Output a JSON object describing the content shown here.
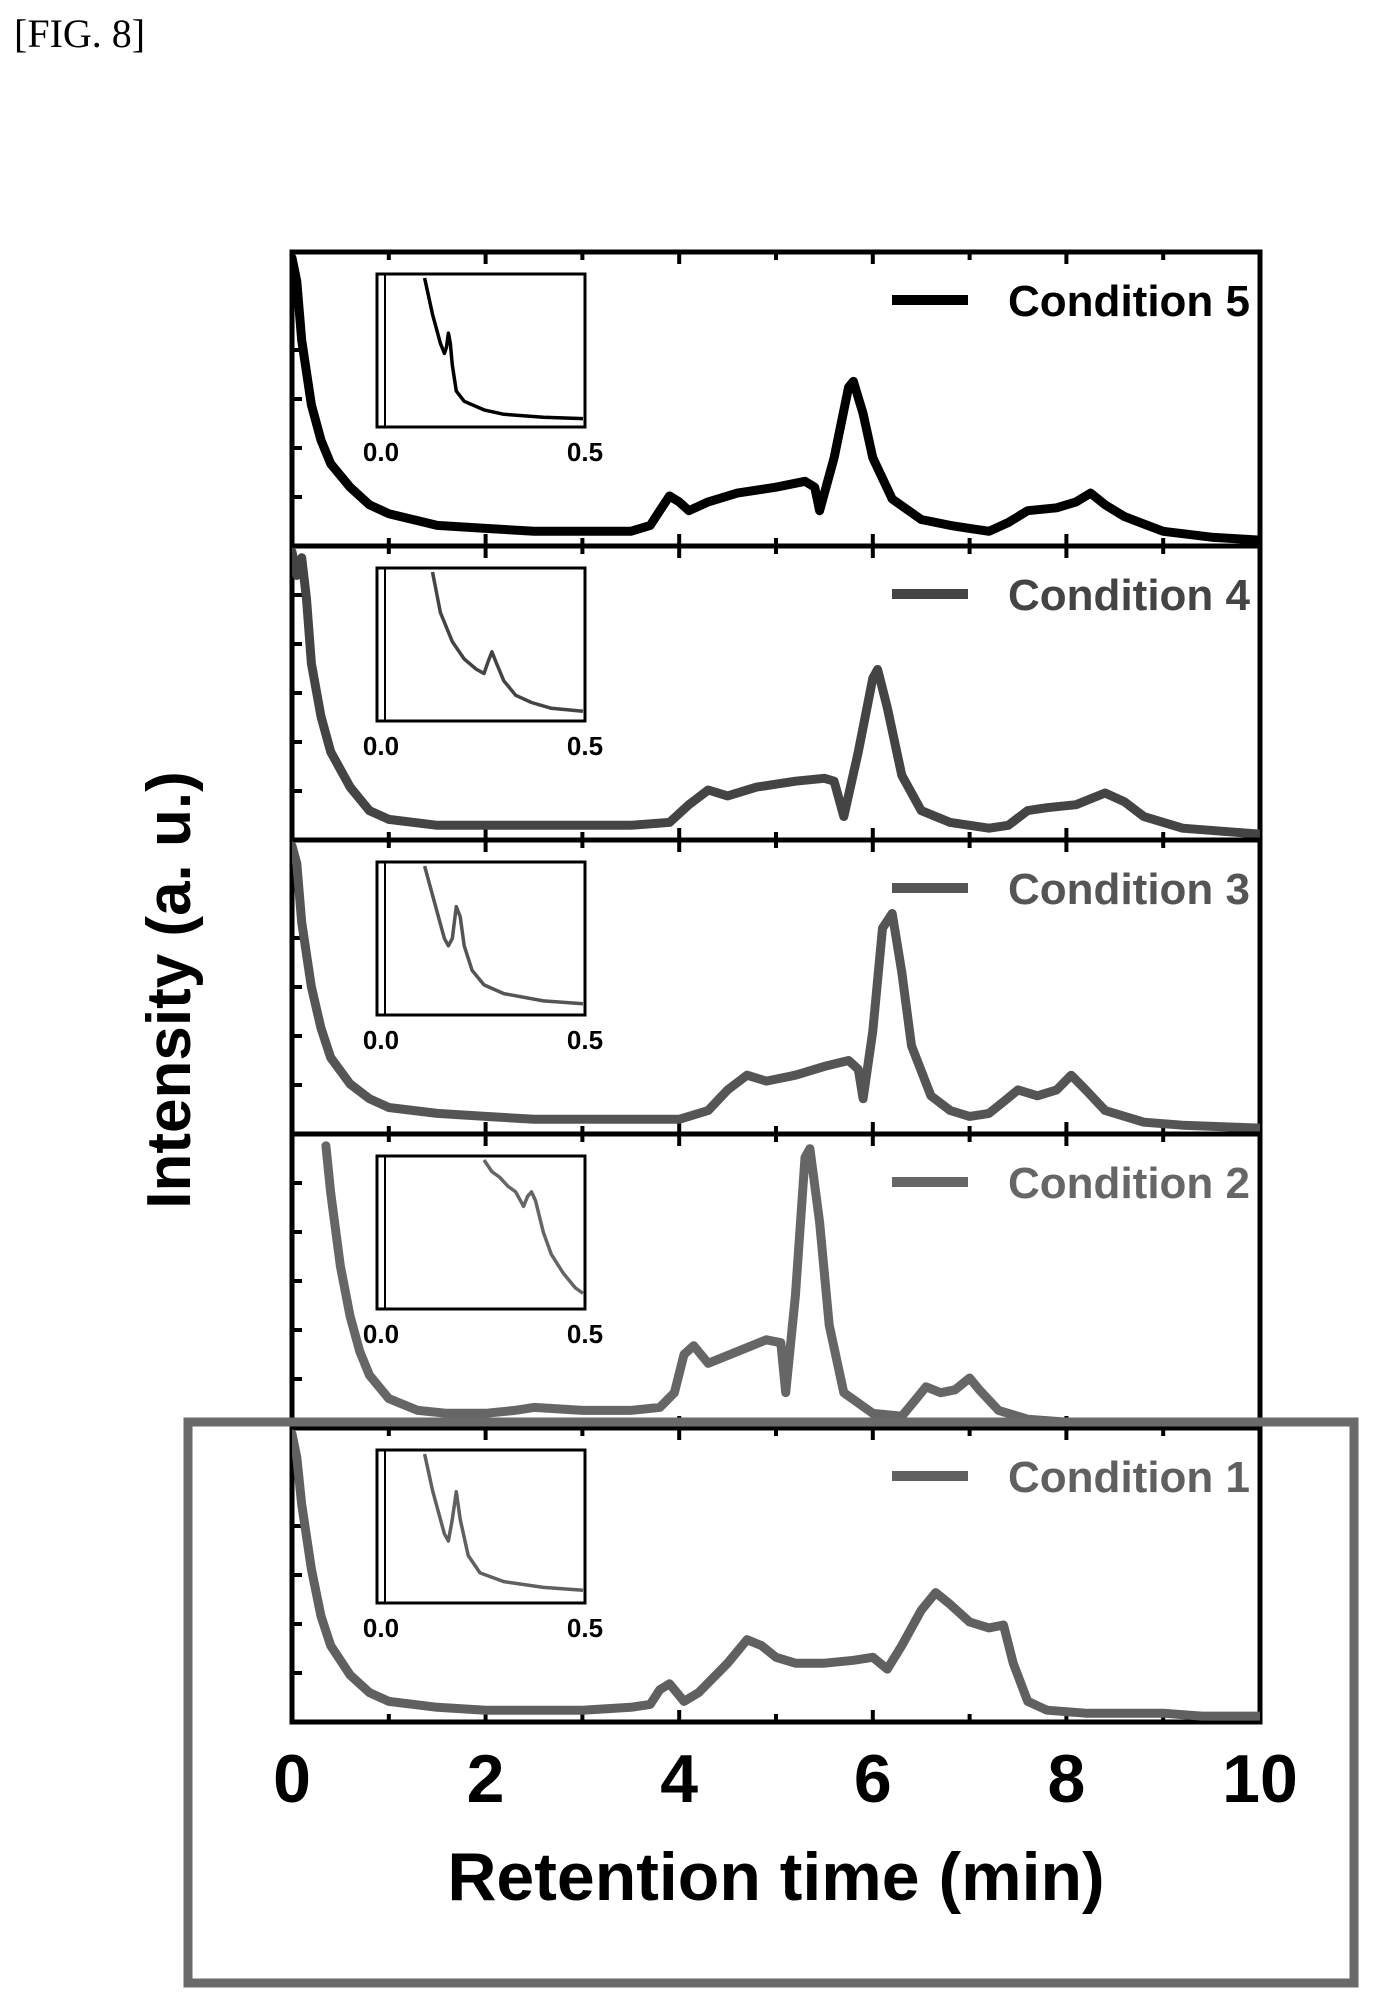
{
  "figure_label": "[FIG. 8]",
  "colors": {
    "condition_5": "#000000",
    "condition_4": "#444444",
    "condition_3": "#555555",
    "condition_2": "#666666",
    "condition_1": "#606060",
    "highlight_box": "#6a6a6a",
    "axis": "#000000"
  },
  "chart_data": {
    "type": "line",
    "title": "",
    "xlabel": "Retention time (min)",
    "ylabel": "Intensity (a. u.)",
    "xlim": [
      0,
      10
    ],
    "x_ticks": [
      "0",
      "2",
      "4",
      "6",
      "8",
      "10"
    ],
    "stacked_panels": true,
    "highlighted_panel": "Condition 1",
    "legend_position": "top-right of each panel",
    "panels": [
      {
        "name": "Condition 5",
        "color": "#000000",
        "points": [
          [
            0.0,
            0.98
          ],
          [
            0.05,
            0.9
          ],
          [
            0.1,
            0.7
          ],
          [
            0.2,
            0.48
          ],
          [
            0.3,
            0.36
          ],
          [
            0.4,
            0.28
          ],
          [
            0.6,
            0.2
          ],
          [
            0.8,
            0.14
          ],
          [
            1.0,
            0.11
          ],
          [
            1.5,
            0.07
          ],
          [
            2.0,
            0.06
          ],
          [
            2.5,
            0.05
          ],
          [
            3.0,
            0.05
          ],
          [
            3.5,
            0.05
          ],
          [
            3.7,
            0.07
          ],
          [
            3.8,
            0.12
          ],
          [
            3.9,
            0.17
          ],
          [
            4.0,
            0.15
          ],
          [
            4.1,
            0.12
          ],
          [
            4.3,
            0.15
          ],
          [
            4.6,
            0.18
          ],
          [
            5.0,
            0.2
          ],
          [
            5.3,
            0.22
          ],
          [
            5.4,
            0.2
          ],
          [
            5.45,
            0.12
          ],
          [
            5.6,
            0.3
          ],
          [
            5.75,
            0.54
          ],
          [
            5.8,
            0.56
          ],
          [
            5.9,
            0.45
          ],
          [
            6.0,
            0.3
          ],
          [
            6.2,
            0.16
          ],
          [
            6.5,
            0.09
          ],
          [
            6.8,
            0.07
          ],
          [
            7.0,
            0.06
          ],
          [
            7.2,
            0.05
          ],
          [
            7.4,
            0.08
          ],
          [
            7.6,
            0.12
          ],
          [
            7.9,
            0.13
          ],
          [
            8.1,
            0.15
          ],
          [
            8.25,
            0.18
          ],
          [
            8.4,
            0.14
          ],
          [
            8.6,
            0.1
          ],
          [
            9.0,
            0.05
          ],
          [
            9.5,
            0.03
          ],
          [
            10.0,
            0.02
          ]
        ],
        "inset": {
          "x_ticks": [
            "0.0",
            "0.5"
          ],
          "points": [
            [
              0.1,
              1.0
            ],
            [
              0.12,
              0.75
            ],
            [
              0.14,
              0.55
            ],
            [
              0.15,
              0.48
            ],
            [
              0.155,
              0.52
            ],
            [
              0.16,
              0.62
            ],
            [
              0.165,
              0.55
            ],
            [
              0.17,
              0.4
            ],
            [
              0.18,
              0.22
            ],
            [
              0.2,
              0.15
            ],
            [
              0.25,
              0.09
            ],
            [
              0.3,
              0.06
            ],
            [
              0.4,
              0.04
            ],
            [
              0.5,
              0.03
            ]
          ]
        }
      },
      {
        "name": "Condition 4",
        "color": "#444444",
        "points": [
          [
            0.0,
            0.98
          ],
          [
            0.05,
            0.9
          ],
          [
            0.1,
            0.96
          ],
          [
            0.15,
            0.82
          ],
          [
            0.2,
            0.6
          ],
          [
            0.3,
            0.42
          ],
          [
            0.4,
            0.3
          ],
          [
            0.6,
            0.18
          ],
          [
            0.8,
            0.1
          ],
          [
            1.0,
            0.07
          ],
          [
            1.5,
            0.05
          ],
          [
            2.0,
            0.05
          ],
          [
            2.5,
            0.05
          ],
          [
            3.0,
            0.05
          ],
          [
            3.5,
            0.05
          ],
          [
            3.9,
            0.06
          ],
          [
            4.1,
            0.12
          ],
          [
            4.3,
            0.17
          ],
          [
            4.5,
            0.15
          ],
          [
            4.8,
            0.18
          ],
          [
            5.2,
            0.2
          ],
          [
            5.5,
            0.21
          ],
          [
            5.6,
            0.2
          ],
          [
            5.7,
            0.08
          ],
          [
            5.85,
            0.3
          ],
          [
            6.0,
            0.55
          ],
          [
            6.05,
            0.58
          ],
          [
            6.15,
            0.45
          ],
          [
            6.3,
            0.22
          ],
          [
            6.5,
            0.1
          ],
          [
            6.8,
            0.06
          ],
          [
            7.2,
            0.04
          ],
          [
            7.4,
            0.05
          ],
          [
            7.6,
            0.1
          ],
          [
            7.8,
            0.11
          ],
          [
            8.1,
            0.12
          ],
          [
            8.4,
            0.16
          ],
          [
            8.6,
            0.13
          ],
          [
            8.8,
            0.08
          ],
          [
            9.2,
            0.04
          ],
          [
            9.6,
            0.03
          ],
          [
            10.0,
            0.02
          ]
        ],
        "inset": {
          "x_ticks": [
            "0.0",
            "0.5"
          ],
          "points": [
            [
              0.12,
              1.0
            ],
            [
              0.14,
              0.72
            ],
            [
              0.17,
              0.52
            ],
            [
              0.2,
              0.4
            ],
            [
              0.23,
              0.33
            ],
            [
              0.25,
              0.3
            ],
            [
              0.26,
              0.38
            ],
            [
              0.27,
              0.45
            ],
            [
              0.28,
              0.38
            ],
            [
              0.3,
              0.25
            ],
            [
              0.33,
              0.15
            ],
            [
              0.37,
              0.1
            ],
            [
              0.42,
              0.06
            ],
            [
              0.5,
              0.04
            ]
          ]
        }
      },
      {
        "name": "Condition 3",
        "color": "#555555",
        "points": [
          [
            0.0,
            0.98
          ],
          [
            0.05,
            0.92
          ],
          [
            0.1,
            0.72
          ],
          [
            0.2,
            0.5
          ],
          [
            0.3,
            0.36
          ],
          [
            0.4,
            0.26
          ],
          [
            0.6,
            0.17
          ],
          [
            0.8,
            0.12
          ],
          [
            1.0,
            0.09
          ],
          [
            1.5,
            0.07
          ],
          [
            2.0,
            0.06
          ],
          [
            2.5,
            0.05
          ],
          [
            3.0,
            0.05
          ],
          [
            3.5,
            0.05
          ],
          [
            4.0,
            0.05
          ],
          [
            4.3,
            0.08
          ],
          [
            4.5,
            0.15
          ],
          [
            4.7,
            0.2
          ],
          [
            4.9,
            0.18
          ],
          [
            5.2,
            0.2
          ],
          [
            5.5,
            0.23
          ],
          [
            5.75,
            0.25
          ],
          [
            5.85,
            0.22
          ],
          [
            5.9,
            0.12
          ],
          [
            6.0,
            0.35
          ],
          [
            6.1,
            0.7
          ],
          [
            6.2,
            0.75
          ],
          [
            6.3,
            0.55
          ],
          [
            6.4,
            0.3
          ],
          [
            6.6,
            0.13
          ],
          [
            6.8,
            0.08
          ],
          [
            7.0,
            0.06
          ],
          [
            7.2,
            0.07
          ],
          [
            7.35,
            0.11
          ],
          [
            7.5,
            0.15
          ],
          [
            7.7,
            0.13
          ],
          [
            7.9,
            0.15
          ],
          [
            8.05,
            0.2
          ],
          [
            8.2,
            0.15
          ],
          [
            8.4,
            0.08
          ],
          [
            8.8,
            0.04
          ],
          [
            9.2,
            0.03
          ],
          [
            10.0,
            0.02
          ]
        ],
        "inset": {
          "x_ticks": [
            "0.0",
            "0.5"
          ],
          "points": [
            [
              0.1,
              1.0
            ],
            [
              0.12,
              0.8
            ],
            [
              0.14,
              0.6
            ],
            [
              0.15,
              0.5
            ],
            [
              0.16,
              0.45
            ],
            [
              0.17,
              0.5
            ],
            [
              0.18,
              0.72
            ],
            [
              0.19,
              0.65
            ],
            [
              0.2,
              0.45
            ],
            [
              0.22,
              0.28
            ],
            [
              0.25,
              0.18
            ],
            [
              0.3,
              0.12
            ],
            [
              0.4,
              0.07
            ],
            [
              0.5,
              0.05
            ]
          ]
        }
      },
      {
        "name": "Condition 2",
        "color": "#666666",
        "points": [
          [
            0.35,
            0.96
          ],
          [
            0.4,
            0.8
          ],
          [
            0.5,
            0.55
          ],
          [
            0.6,
            0.38
          ],
          [
            0.7,
            0.26
          ],
          [
            0.8,
            0.18
          ],
          [
            1.0,
            0.1
          ],
          [
            1.3,
            0.06
          ],
          [
            1.6,
            0.05
          ],
          [
            2.0,
            0.05
          ],
          [
            2.3,
            0.06
          ],
          [
            2.5,
            0.07
          ],
          [
            3.0,
            0.06
          ],
          [
            3.5,
            0.06
          ],
          [
            3.8,
            0.07
          ],
          [
            3.95,
            0.12
          ],
          [
            4.05,
            0.25
          ],
          [
            4.15,
            0.28
          ],
          [
            4.3,
            0.22
          ],
          [
            4.6,
            0.26
          ],
          [
            4.9,
            0.3
          ],
          [
            5.05,
            0.29
          ],
          [
            5.1,
            0.12
          ],
          [
            5.2,
            0.45
          ],
          [
            5.3,
            0.92
          ],
          [
            5.35,
            0.95
          ],
          [
            5.45,
            0.7
          ],
          [
            5.55,
            0.35
          ],
          [
            5.7,
            0.12
          ],
          [
            6.0,
            0.05
          ],
          [
            6.3,
            0.04
          ],
          [
            6.45,
            0.1
          ],
          [
            6.55,
            0.14
          ],
          [
            6.7,
            0.12
          ],
          [
            6.85,
            0.13
          ],
          [
            7.0,
            0.17
          ],
          [
            7.1,
            0.13
          ],
          [
            7.3,
            0.06
          ],
          [
            7.6,
            0.03
          ],
          [
            8.0,
            0.02
          ],
          [
            9.0,
            0.01
          ],
          [
            10.0,
            0.01
          ]
        ],
        "inset": {
          "x_ticks": [
            "0.0",
            "0.5"
          ],
          "points": [
            [
              0.25,
              1.0
            ],
            [
              0.27,
              0.92
            ],
            [
              0.29,
              0.88
            ],
            [
              0.31,
              0.82
            ],
            [
              0.33,
              0.78
            ],
            [
              0.35,
              0.68
            ],
            [
              0.36,
              0.75
            ],
            [
              0.37,
              0.78
            ],
            [
              0.38,
              0.72
            ],
            [
              0.4,
              0.5
            ],
            [
              0.42,
              0.35
            ],
            [
              0.45,
              0.22
            ],
            [
              0.48,
              0.12
            ],
            [
              0.5,
              0.08
            ]
          ]
        }
      },
      {
        "name": "Condition 1",
        "color": "#606060",
        "points": [
          [
            0.0,
            0.98
          ],
          [
            0.05,
            0.9
          ],
          [
            0.1,
            0.74
          ],
          [
            0.2,
            0.52
          ],
          [
            0.3,
            0.36
          ],
          [
            0.4,
            0.26
          ],
          [
            0.6,
            0.16
          ],
          [
            0.8,
            0.1
          ],
          [
            1.0,
            0.07
          ],
          [
            1.5,
            0.05
          ],
          [
            2.0,
            0.04
          ],
          [
            2.5,
            0.04
          ],
          [
            3.0,
            0.04
          ],
          [
            3.5,
            0.05
          ],
          [
            3.7,
            0.06
          ],
          [
            3.8,
            0.11
          ],
          [
            3.9,
            0.13
          ],
          [
            4.0,
            0.09
          ],
          [
            4.05,
            0.07
          ],
          [
            4.2,
            0.1
          ],
          [
            4.5,
            0.2
          ],
          [
            4.7,
            0.28
          ],
          [
            4.85,
            0.26
          ],
          [
            5.0,
            0.22
          ],
          [
            5.2,
            0.2
          ],
          [
            5.5,
            0.2
          ],
          [
            5.8,
            0.21
          ],
          [
            6.0,
            0.22
          ],
          [
            6.15,
            0.18
          ],
          [
            6.3,
            0.26
          ],
          [
            6.5,
            0.38
          ],
          [
            6.65,
            0.44
          ],
          [
            6.8,
            0.4
          ],
          [
            7.0,
            0.34
          ],
          [
            7.2,
            0.32
          ],
          [
            7.35,
            0.33
          ],
          [
            7.45,
            0.2
          ],
          [
            7.6,
            0.07
          ],
          [
            7.8,
            0.04
          ],
          [
            8.2,
            0.03
          ],
          [
            8.6,
            0.03
          ],
          [
            9.0,
            0.03
          ],
          [
            9.4,
            0.02
          ],
          [
            10.0,
            0.02
          ]
        ],
        "inset": {
          "x_ticks": [
            "0.0",
            "0.5"
          ],
          "points": [
            [
              0.1,
              1.0
            ],
            [
              0.12,
              0.75
            ],
            [
              0.14,
              0.55
            ],
            [
              0.15,
              0.45
            ],
            [
              0.16,
              0.4
            ],
            [
              0.17,
              0.55
            ],
            [
              0.18,
              0.74
            ],
            [
              0.19,
              0.55
            ],
            [
              0.21,
              0.3
            ],
            [
              0.24,
              0.18
            ],
            [
              0.3,
              0.12
            ],
            [
              0.4,
              0.08
            ],
            [
              0.5,
              0.06
            ]
          ]
        }
      }
    ]
  }
}
